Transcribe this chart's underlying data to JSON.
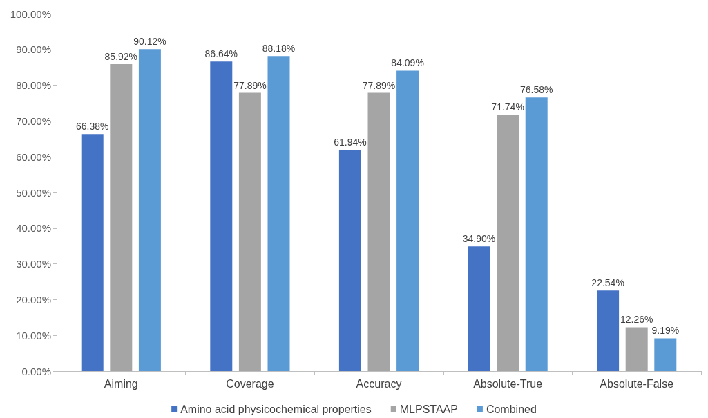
{
  "chart_data": {
    "type": "bar",
    "categories": [
      "Aiming",
      "Coverage",
      "Accuracy",
      "Absolute-True",
      "Absolute-False"
    ],
    "series": [
      {
        "name": "Amino acid physicochemical properties",
        "color": "#4472c4",
        "values": [
          66.38,
          86.64,
          61.94,
          34.9,
          22.54
        ],
        "value_labels": [
          "66.38%",
          "86.64%",
          "61.94%",
          "34.90%",
          "22.54%"
        ]
      },
      {
        "name": "MLPSTAAP",
        "color": "#a5a5a5",
        "values": [
          85.92,
          77.89,
          77.89,
          71.74,
          12.26
        ],
        "value_labels": [
          "85.92%",
          "77.89%",
          "77.89%",
          "71.74%",
          "12.26%"
        ]
      },
      {
        "name": "Combined",
        "color": "#5b9bd5",
        "values": [
          90.12,
          88.18,
          84.09,
          76.58,
          9.19
        ],
        "value_labels": [
          "90.12%",
          "88.18%",
          "84.09%",
          "76.58%",
          "9.19%"
        ]
      }
    ],
    "ylim": [
      0,
      100
    ],
    "yticks": [
      {
        "value": 0,
        "label": "0.00%"
      },
      {
        "value": 10,
        "label": "10.00%"
      },
      {
        "value": 20,
        "label": "20.00%"
      },
      {
        "value": 30,
        "label": "30.00%"
      },
      {
        "value": 40,
        "label": "40.00%"
      },
      {
        "value": 50,
        "label": "50.00%"
      },
      {
        "value": 60,
        "label": "60.00%"
      },
      {
        "value": 70,
        "label": "70.00%"
      },
      {
        "value": 80,
        "label": "80.00%"
      },
      {
        "value": 90,
        "label": "90.00%"
      },
      {
        "value": 100,
        "label": "100.00%"
      }
    ],
    "grid": false,
    "legend": "bottom"
  }
}
